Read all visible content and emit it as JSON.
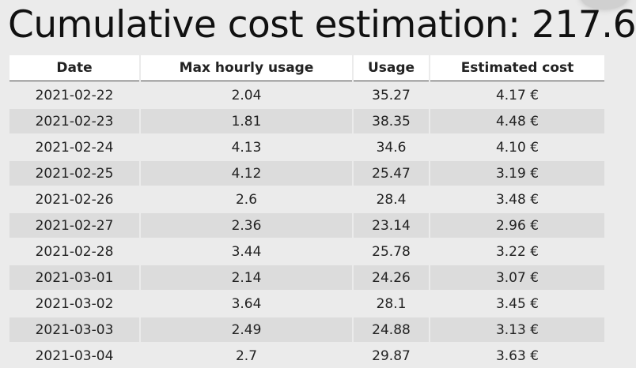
{
  "title": "Cumulative cost estimation: 217.6",
  "table": {
    "columns": [
      "Date",
      "Max hourly usage",
      "Usage",
      "Estimated cost"
    ],
    "rows": [
      [
        "2021-02-22",
        "2.04",
        "35.27",
        "4.17 €"
      ],
      [
        "2021-02-23",
        "1.81",
        "38.35",
        "4.48 €"
      ],
      [
        "2021-02-24",
        "4.13",
        "34.6",
        "4.10 €"
      ],
      [
        "2021-02-25",
        "4.12",
        "25.47",
        "3.19 €"
      ],
      [
        "2021-02-26",
        "2.6",
        "28.4",
        "3.48 €"
      ],
      [
        "2021-02-27",
        "2.36",
        "23.14",
        "2.96 €"
      ],
      [
        "2021-02-28",
        "3.44",
        "25.78",
        "3.22 €"
      ],
      [
        "2021-03-01",
        "2.14",
        "24.26",
        "3.07 €"
      ],
      [
        "2021-03-02",
        "3.64",
        "28.1",
        "3.45 €"
      ],
      [
        "2021-03-03",
        "2.49",
        "24.88",
        "3.13 €"
      ],
      [
        "2021-03-04",
        "2.7",
        "29.87",
        "3.63 €"
      ]
    ]
  }
}
